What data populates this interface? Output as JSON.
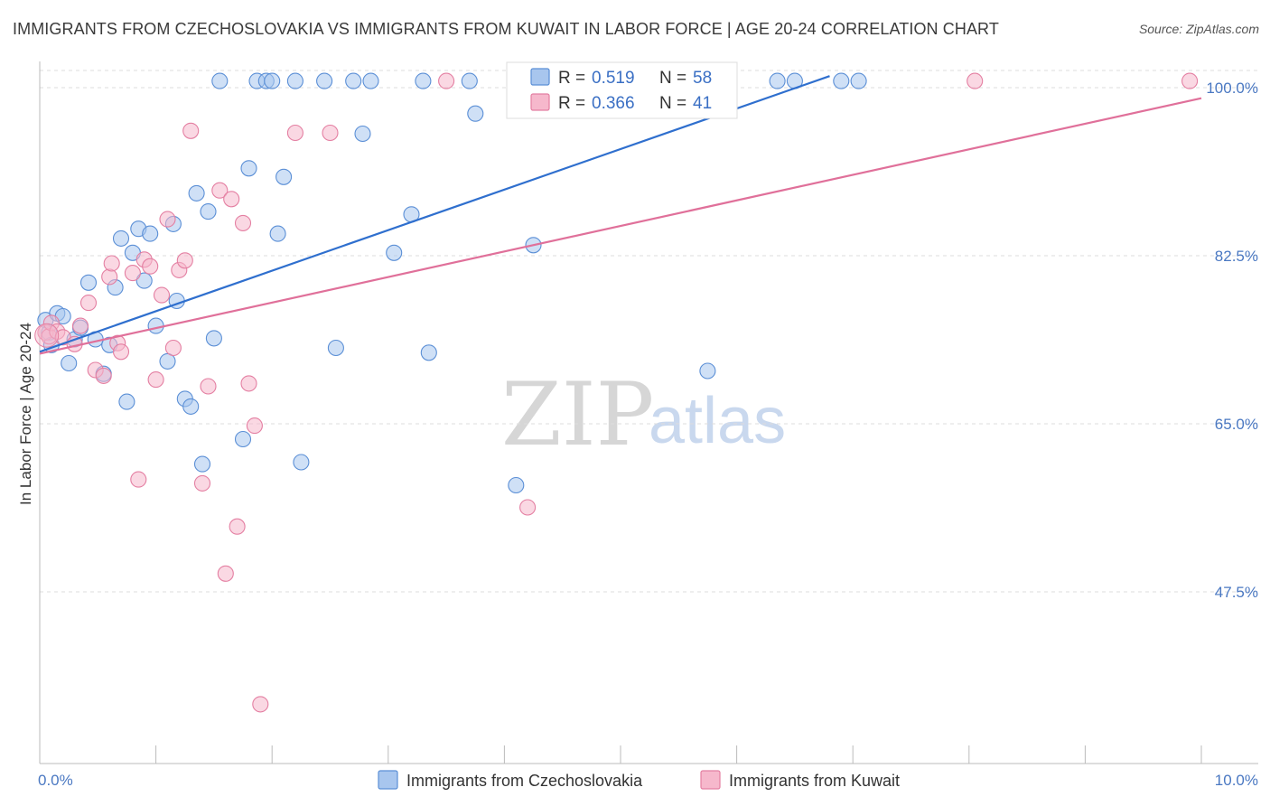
{
  "title": "IMMIGRANTS FROM CZECHOSLOVAKIA VS IMMIGRANTS FROM KUWAIT IN LABOR FORCE | AGE 20-24 CORRELATION CHART",
  "source": "Source: ZipAtlas.com",
  "watermark": {
    "zip": "ZIP",
    "atlas": "atlas"
  },
  "colors": {
    "blue_fill": "#a8c6ee",
    "blue_stroke": "#5b8fd6",
    "blue_line": "#2f6fce",
    "pink_fill": "#f6b8cc",
    "pink_stroke": "#e47fa2",
    "pink_line": "#e0709a",
    "tick_label": "#4a78c2",
    "grid": "#dddddd"
  },
  "legend": {
    "rows": [
      {
        "r_label": "R =",
        "r_value": "0.519",
        "n_label": "N =",
        "n_value": "58"
      },
      {
        "r_label": "R =",
        "r_value": "0.366",
        "n_label": "N =",
        "n_value": "41"
      }
    ]
  },
  "chart_data": {
    "type": "scatter",
    "title": "IMMIGRANTS FROM CZECHOSLOVAKIA VS IMMIGRANTS FROM KUWAIT IN LABOR FORCE | AGE 20-24 CORRELATION CHART",
    "xlabel": "",
    "ylabel": "In Labor Force | Age 20-24",
    "xlim": [
      0,
      10
    ],
    "ylim": [
      30,
      101.5
    ],
    "x_tick_labels": [
      "0.0%",
      "10.0%"
    ],
    "x_tick_values": [
      0,
      10
    ],
    "y_tick_labels": [
      "47.5%",
      "65.0%",
      "82.5%",
      "100.0%"
    ],
    "y_tick_values": [
      47.5,
      65,
      82.5,
      100
    ],
    "grid": true,
    "legend_position": "top-center",
    "series": [
      {
        "name": "Immigrants from Czechoslovakia",
        "color": "#5b8fd6",
        "trend": {
          "x": [
            0,
            6.8
          ],
          "y": [
            72.5,
            101.2
          ]
        },
        "points": [
          [
            0.05,
            75.8
          ],
          [
            0.08,
            74.5
          ],
          [
            0.1,
            73.2
          ],
          [
            0.15,
            76.5
          ],
          [
            0.2,
            76.2
          ],
          [
            0.25,
            71.3
          ],
          [
            0.3,
            73.8
          ],
          [
            0.35,
            75.0
          ],
          [
            0.42,
            79.7
          ],
          [
            0.48,
            73.8
          ],
          [
            0.55,
            70.2
          ],
          [
            0.6,
            73.2
          ],
          [
            0.65,
            79.2
          ],
          [
            0.7,
            84.3
          ],
          [
            0.75,
            67.3
          ],
          [
            0.8,
            82.8
          ],
          [
            0.85,
            85.3
          ],
          [
            0.9,
            79.9
          ],
          [
            0.95,
            84.8
          ],
          [
            1.0,
            75.2
          ],
          [
            1.1,
            71.5
          ],
          [
            1.15,
            85.8
          ],
          [
            1.18,
            77.8
          ],
          [
            1.25,
            67.6
          ],
          [
            1.3,
            66.8
          ],
          [
            1.35,
            89.0
          ],
          [
            1.4,
            60.8
          ],
          [
            1.45,
            87.1
          ],
          [
            1.5,
            73.9
          ],
          [
            1.55,
            100.7
          ],
          [
            1.75,
            63.4
          ],
          [
            1.8,
            91.6
          ],
          [
            1.87,
            100.7
          ],
          [
            1.95,
            100.7
          ],
          [
            2.0,
            100.7
          ],
          [
            2.05,
            84.8
          ],
          [
            2.1,
            90.7
          ],
          [
            2.2,
            100.7
          ],
          [
            2.25,
            61.0
          ],
          [
            2.45,
            100.7
          ],
          [
            2.55,
            72.9
          ],
          [
            2.7,
            100.7
          ],
          [
            2.78,
            95.2
          ],
          [
            2.85,
            100.7
          ],
          [
            3.05,
            82.8
          ],
          [
            3.2,
            86.8
          ],
          [
            3.3,
            100.7
          ],
          [
            3.35,
            72.4
          ],
          [
            3.7,
            100.7
          ],
          [
            3.75,
            97.3
          ],
          [
            4.1,
            58.6
          ],
          [
            4.25,
            83.6
          ],
          [
            4.4,
            100.7
          ],
          [
            5.75,
            70.5
          ],
          [
            6.35,
            100.7
          ],
          [
            6.5,
            100.7
          ],
          [
            6.9,
            100.7
          ],
          [
            7.05,
            100.7
          ]
        ]
      },
      {
        "name": "Immigrants from Kuwait",
        "color": "#e47fa2",
        "trend": {
          "x": [
            0,
            10
          ],
          "y": [
            72.3,
            98.9
          ]
        },
        "points": [
          [
            0.05,
            74.5
          ],
          [
            0.08,
            74.1
          ],
          [
            0.1,
            75.5
          ],
          [
            0.15,
            74.6
          ],
          [
            0.2,
            74.0
          ],
          [
            0.3,
            73.3
          ],
          [
            0.35,
            75.2
          ],
          [
            0.42,
            77.6
          ],
          [
            0.48,
            70.6
          ],
          [
            0.55,
            70.0
          ],
          [
            0.6,
            80.3
          ],
          [
            0.62,
            81.7
          ],
          [
            0.67,
            73.4
          ],
          [
            0.7,
            72.5
          ],
          [
            0.8,
            80.7
          ],
          [
            0.85,
            59.2
          ],
          [
            0.9,
            82.1
          ],
          [
            0.95,
            81.4
          ],
          [
            1.0,
            69.6
          ],
          [
            1.05,
            78.4
          ],
          [
            1.1,
            86.3
          ],
          [
            1.15,
            72.9
          ],
          [
            1.2,
            81.0
          ],
          [
            1.25,
            82.0
          ],
          [
            1.3,
            95.5
          ],
          [
            1.4,
            58.8
          ],
          [
            1.45,
            68.9
          ],
          [
            1.55,
            89.3
          ],
          [
            1.6,
            49.4
          ],
          [
            1.65,
            88.4
          ],
          [
            1.7,
            54.3
          ],
          [
            1.75,
            85.9
          ],
          [
            1.8,
            69.2
          ],
          [
            1.85,
            64.8
          ],
          [
            1.9,
            35.8
          ],
          [
            2.2,
            95.3
          ],
          [
            2.5,
            95.3
          ],
          [
            3.5,
            100.7
          ],
          [
            4.2,
            56.3
          ],
          [
            8.05,
            100.7
          ],
          [
            9.9,
            100.7
          ]
        ]
      }
    ]
  }
}
